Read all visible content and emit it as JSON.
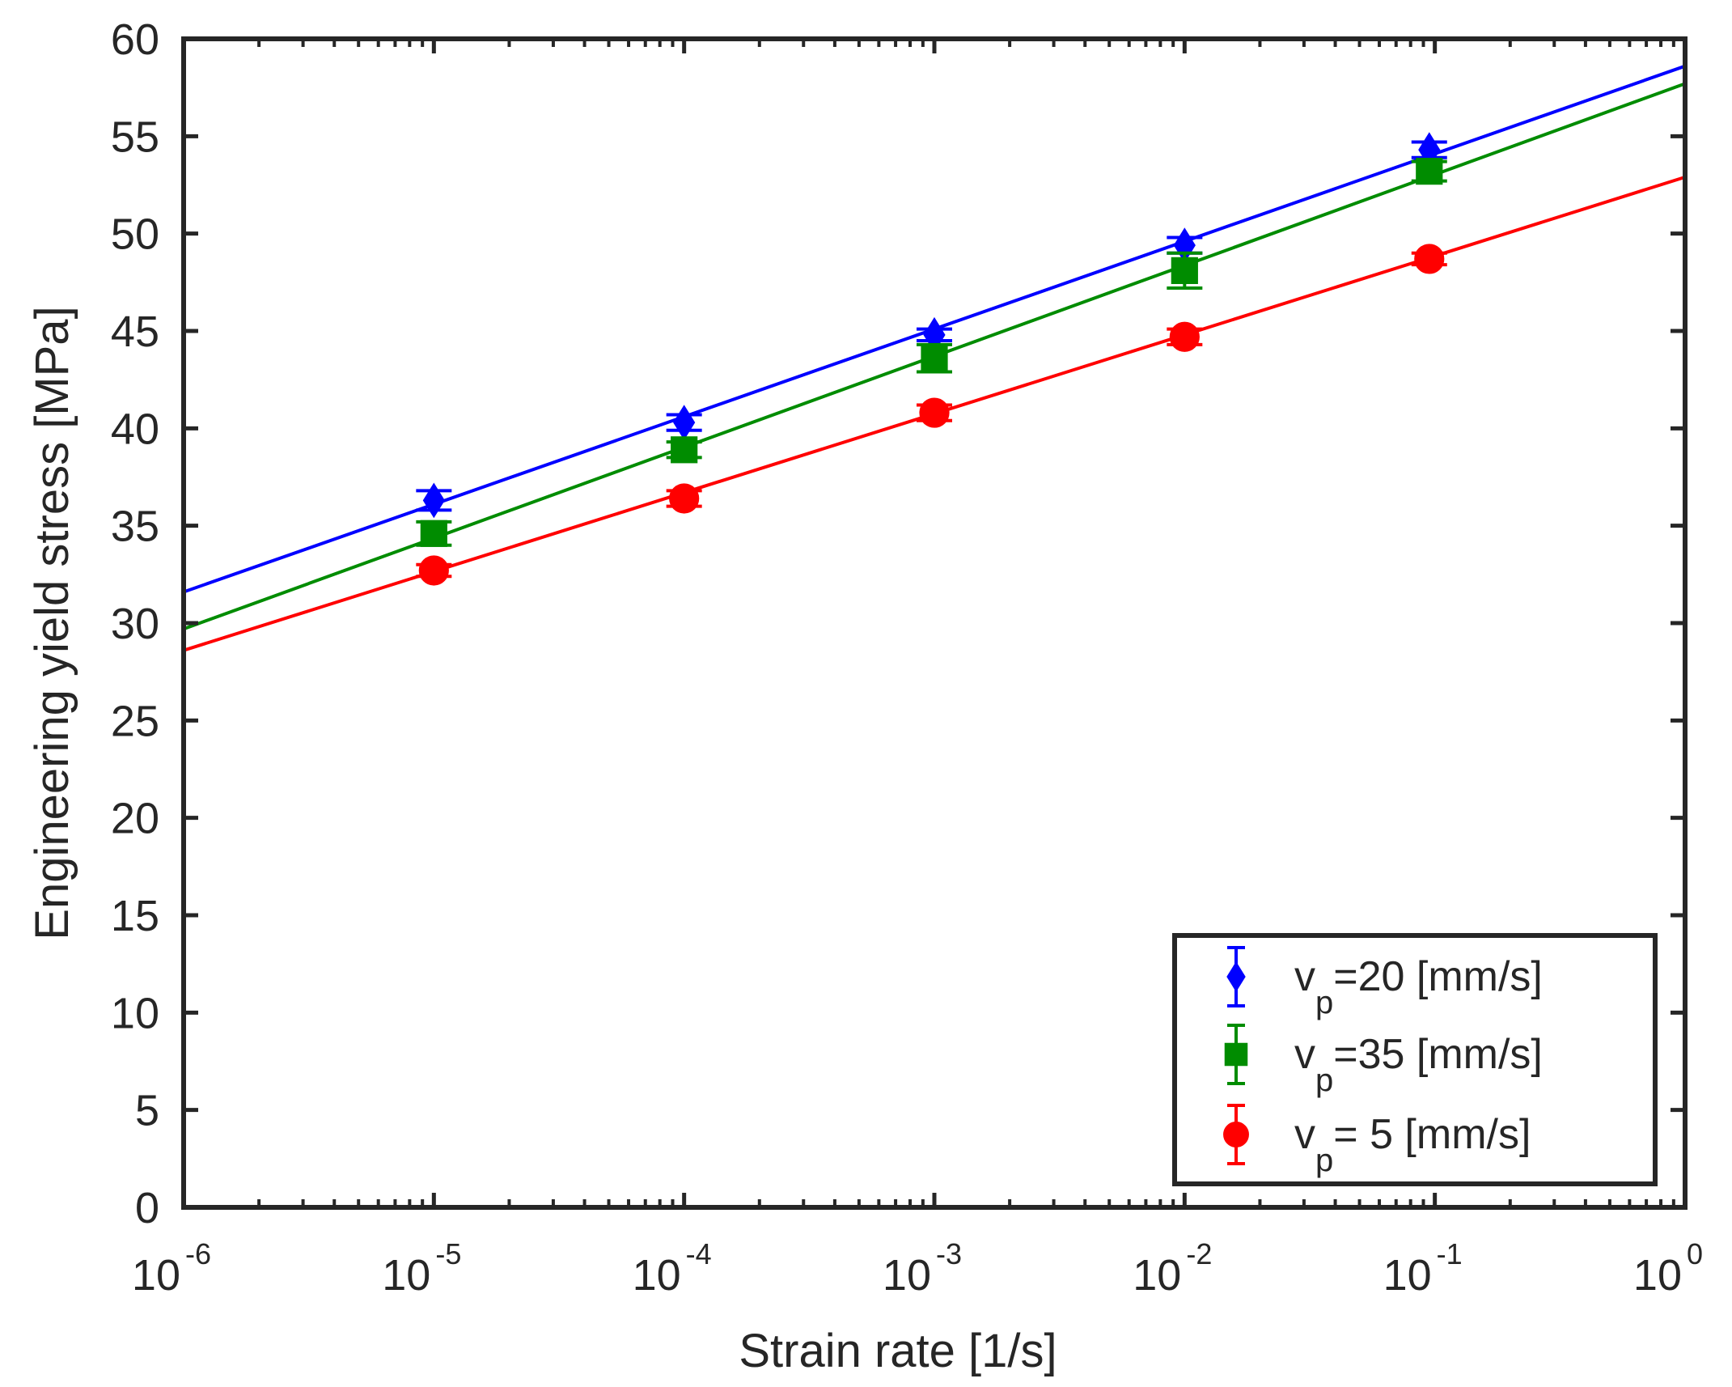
{
  "chart_data": {
    "type": "scatter",
    "title": "",
    "xlabel": "Strain rate [1/s]",
    "ylabel": "Engineering yield stress [MPa]",
    "xscale": "log",
    "xlim": [
      1e-06,
      1
    ],
    "ylim": [
      0,
      60
    ],
    "x_ticks": [
      {
        "base": "10",
        "exp": "-6",
        "value": 1e-06
      },
      {
        "base": "10",
        "exp": "-5",
        "value": 1e-05
      },
      {
        "base": "10",
        "exp": "-4",
        "value": 0.0001
      },
      {
        "base": "10",
        "exp": "-3",
        "value": 0.001
      },
      {
        "base": "10",
        "exp": "-2",
        "value": 0.01
      },
      {
        "base": "10",
        "exp": "-1",
        "value": 0.1
      },
      {
        "base": "10",
        "exp": "0",
        "value": 1
      }
    ],
    "y_ticks": [
      "0",
      "5",
      "10",
      "15",
      "20",
      "25",
      "30",
      "35",
      "40",
      "45",
      "50",
      "55",
      "60"
    ],
    "grid": false,
    "legend_position": "bottom-right",
    "series": [
      {
        "name": "v_p=20 [mm/s]",
        "legend_main": "v",
        "legend_sub": "p",
        "legend_rest": "=20 [mm/s]",
        "color": "#0000ff",
        "marker": "diamond",
        "points": [
          {
            "x": 1e-05,
            "y": 36.3,
            "err": 0.5
          },
          {
            "x": 0.0001,
            "y": 40.3,
            "err": 0.4
          },
          {
            "x": 0.001,
            "y": 44.8,
            "err": 0.3
          },
          {
            "x": 0.01,
            "y": 49.4,
            "err": 0.4
          },
          {
            "x": 0.095,
            "y": 54.3,
            "err": 0.4
          }
        ],
        "fit": {
          "x": [
            1e-06,
            1
          ],
          "y": [
            31.6,
            58.6
          ]
        }
      },
      {
        "name": "v_p=35 [mm/s]",
        "legend_main": "v",
        "legend_sub": "p",
        "legend_rest": "=35 [mm/s]",
        "color": "#008c00",
        "marker": "square",
        "points": [
          {
            "x": 1e-05,
            "y": 34.6,
            "err": 0.6
          },
          {
            "x": 0.0001,
            "y": 38.9,
            "err": 0.4
          },
          {
            "x": 0.001,
            "y": 43.6,
            "err": 0.7
          },
          {
            "x": 0.01,
            "y": 48.1,
            "err": 0.9
          },
          {
            "x": 0.095,
            "y": 53.2,
            "err": 0.5
          }
        ],
        "fit": {
          "x": [
            1e-06,
            1
          ],
          "y": [
            29.7,
            57.7
          ]
        }
      },
      {
        "name": "v_p=  5 [mm/s]",
        "legend_main": "v",
        "legend_sub": "p",
        "legend_rest": "=  5 [mm/s]",
        "color": "#ff0000",
        "marker": "circle",
        "points": [
          {
            "x": 1e-05,
            "y": 32.7,
            "err": 0.3
          },
          {
            "x": 0.0001,
            "y": 36.4,
            "err": 0.4
          },
          {
            "x": 0.001,
            "y": 40.8,
            "err": 0.4
          },
          {
            "x": 0.01,
            "y": 44.7,
            "err": 0.4
          },
          {
            "x": 0.095,
            "y": 48.7,
            "err": 0.3
          }
        ],
        "fit": {
          "x": [
            1e-06,
            1
          ],
          "y": [
            28.6,
            52.9
          ]
        }
      }
    ]
  }
}
